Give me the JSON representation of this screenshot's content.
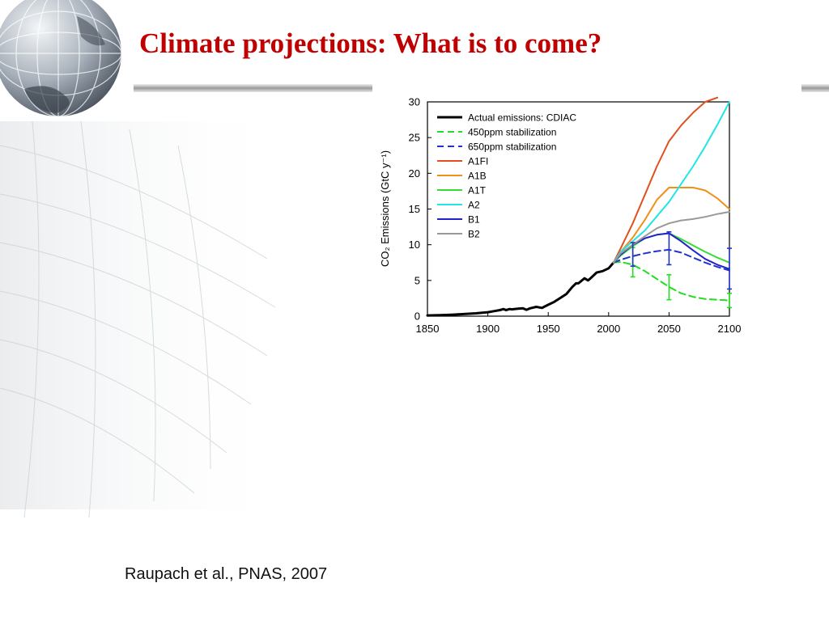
{
  "slide": {
    "title": "Climate projections: What is to come?",
    "citation": "Raupach et al., PNAS, 2007",
    "title_color": "#c00000"
  },
  "decoration": {
    "logo": "globe-icon",
    "background": "grid-sphere"
  },
  "chart_data": {
    "type": "line",
    "title": "",
    "xlabel": "",
    "ylabel": "CO₂ Emissions (GtC y⁻¹)",
    "xlim": [
      1850,
      2100
    ],
    "ylim": [
      0,
      30
    ],
    "xticks": [
      1850,
      1900,
      1950,
      2000,
      2050,
      2100
    ],
    "yticks": [
      0,
      5,
      10,
      15,
      20,
      25,
      30
    ],
    "legend_position": "top-left",
    "series": [
      {
        "name": "Actual emissions: CDIAC",
        "color": "#000000",
        "style": "solid",
        "width": 3,
        "x": [
          1850,
          1860,
          1870,
          1880,
          1890,
          1900,
          1905,
          1910,
          1913,
          1915,
          1918,
          1920,
          1925,
          1929,
          1932,
          1935,
          1940,
          1945,
          1947,
          1950,
          1955,
          1960,
          1965,
          1970,
          1973,
          1975,
          1980,
          1983,
          1985,
          1990,
          1995,
          2000,
          2004
        ],
        "y": [
          0.1,
          0.15,
          0.2,
          0.3,
          0.4,
          0.55,
          0.7,
          0.85,
          1.0,
          0.85,
          1.0,
          0.95,
          1.05,
          1.1,
          0.9,
          1.1,
          1.3,
          1.15,
          1.35,
          1.6,
          2.0,
          2.55,
          3.1,
          4.1,
          4.6,
          4.6,
          5.3,
          5.0,
          5.3,
          6.1,
          6.3,
          6.7,
          7.5
        ]
      },
      {
        "name": "450ppm stabilization",
        "color": "#22dd22",
        "style": "dashed",
        "width": 2,
        "x": [
          2004,
          2010,
          2020,
          2030,
          2040,
          2050,
          2060,
          2070,
          2080,
          2090,
          2100
        ],
        "y": [
          7.5,
          7.6,
          7.2,
          6.3,
          5.2,
          4.1,
          3.2,
          2.7,
          2.4,
          2.3,
          2.2
        ]
      },
      {
        "name": "650ppm stabilization",
        "color": "#2233cc",
        "style": "dashed",
        "width": 2,
        "x": [
          2004,
          2010,
          2020,
          2030,
          2040,
          2050,
          2060,
          2070,
          2080,
          2090,
          2100
        ],
        "y": [
          7.5,
          7.9,
          8.4,
          8.8,
          9.1,
          9.3,
          8.9,
          8.2,
          7.5,
          6.9,
          6.4
        ]
      },
      {
        "name": "A1FI",
        "color": "#e05020",
        "style": "solid",
        "width": 2,
        "x": [
          2004,
          2010,
          2020,
          2030,
          2040,
          2050,
          2060,
          2070,
          2080,
          2090
        ],
        "y": [
          7.5,
          9.5,
          13.0,
          17.0,
          21.0,
          24.5,
          26.7,
          28.5,
          30.0,
          30.6
        ]
      },
      {
        "name": "A1B",
        "color": "#f0901a",
        "style": "solid",
        "width": 2,
        "x": [
          2004,
          2010,
          2020,
          2030,
          2040,
          2050,
          2060,
          2070,
          2080,
          2090,
          2100
        ],
        "y": [
          7.5,
          9.0,
          11.0,
          13.5,
          16.3,
          18.0,
          18.0,
          18.0,
          17.6,
          16.5,
          15.0
        ]
      },
      {
        "name": "A1T",
        "color": "#33dd33",
        "style": "solid",
        "width": 2,
        "x": [
          2004,
          2010,
          2020,
          2030,
          2040,
          2050,
          2060,
          2070,
          2080,
          2090,
          2100
        ],
        "y": [
          7.5,
          8.5,
          9.8,
          10.9,
          11.4,
          11.6,
          10.8,
          9.9,
          9.0,
          8.2,
          7.5
        ]
      },
      {
        "name": "A2",
        "color": "#22e5e5",
        "style": "solid",
        "width": 2,
        "x": [
          2004,
          2010,
          2020,
          2030,
          2040,
          2050,
          2060,
          2070,
          2080,
          2090,
          2100
        ],
        "y": [
          7.5,
          9.0,
          10.5,
          12.0,
          14.0,
          16.0,
          18.5,
          21.0,
          23.8,
          26.8,
          30.0
        ]
      },
      {
        "name": "B1",
        "color": "#2222cc",
        "style": "solid",
        "width": 2,
        "x": [
          2004,
          2010,
          2020,
          2030,
          2040,
          2050,
          2060,
          2070,
          2080,
          2090,
          2100
        ],
        "y": [
          7.5,
          8.6,
          10.0,
          10.9,
          11.4,
          11.6,
          10.5,
          9.2,
          8.0,
          7.2,
          6.6
        ]
      },
      {
        "name": "B2",
        "color": "#999999",
        "style": "solid",
        "width": 2,
        "x": [
          2004,
          2010,
          2020,
          2030,
          2040,
          2050,
          2060,
          2070,
          2080,
          2090,
          2100
        ],
        "y": [
          7.5,
          8.8,
          10.0,
          11.2,
          12.3,
          13.0,
          13.4,
          13.6,
          13.9,
          14.3,
          14.6
        ]
      }
    ],
    "error_bars": [
      {
        "x": 2020,
        "low": 5.5,
        "high": 9.6,
        "color": "#22dd22"
      },
      {
        "x": 2050,
        "low": 2.3,
        "high": 5.8,
        "color": "#22dd22"
      },
      {
        "x": 2100,
        "low": 1.2,
        "high": 3.2,
        "color": "#22dd22"
      },
      {
        "x": 2020,
        "low": 7.0,
        "high": 10.3,
        "color": "#2233cc"
      },
      {
        "x": 2050,
        "low": 7.2,
        "high": 11.8,
        "color": "#2233cc"
      },
      {
        "x": 2100,
        "low": 3.8,
        "high": 9.5,
        "color": "#2233cc"
      }
    ]
  }
}
